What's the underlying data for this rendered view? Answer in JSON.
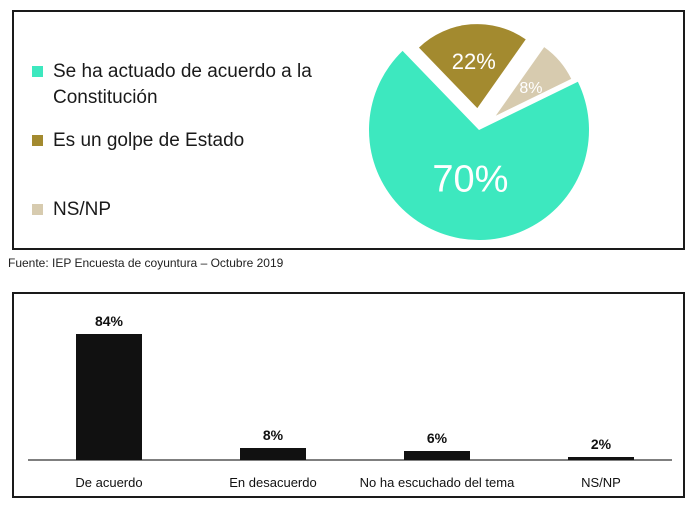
{
  "chart_data": [
    {
      "type": "pie",
      "labels": [
        "Se ha actuado de acuerdo a la Constitución",
        "Es un golpe de Estado",
        "NS/NP"
      ],
      "values": [
        70,
        22,
        8
      ],
      "display_labels": [
        "70%",
        "22%",
        "8%"
      ],
      "colors": [
        "#3de8bf",
        "#a38a2f",
        "#d7cbaf"
      ],
      "legend_lines": [
        [
          "Se ha actuado de acuerdo a la",
          "Constitución"
        ],
        [
          "Es un golpe de Estado"
        ],
        [
          "NS/NP"
        ]
      ],
      "legend": "left"
    },
    {
      "type": "bar",
      "categories": [
        "De acuerdo",
        "En desacuerdo",
        "No ha escuchado del tema",
        "NS/NP"
      ],
      "values": [
        84,
        8,
        6,
        2
      ],
      "display_labels": [
        "84%",
        "8%",
        "6%",
        "2%"
      ],
      "color": "#111111",
      "ylim": [
        0,
        100
      ]
    }
  ],
  "source": "Fuente: IEP Encuesta de coyuntura – Octubre 2019"
}
